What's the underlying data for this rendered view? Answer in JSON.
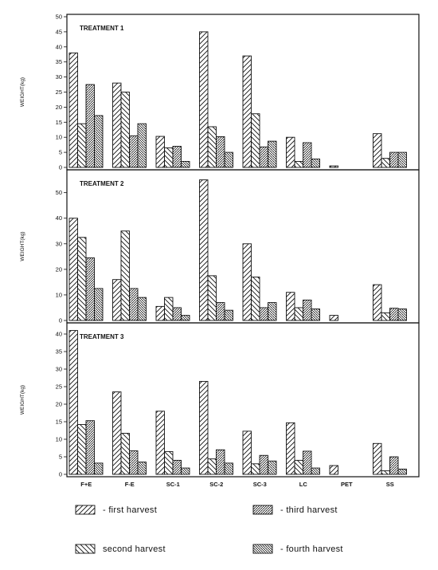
{
  "chart_data": [
    {
      "type": "bar",
      "title": "TREATMENT 1",
      "ylabel": "WEIGHT(kg)",
      "ylim": [
        0,
        50
      ],
      "yticks": [
        0,
        5,
        10,
        15,
        20,
        25,
        30,
        35,
        40,
        45,
        50
      ],
      "categories": [
        "F+E",
        "F-E",
        "SC-1",
        "SC-2",
        "SC-3",
        "LC",
        "PET",
        "SS"
      ],
      "series": [
        {
          "name": "first harvest",
          "values": [
            38,
            28,
            10.3,
            45,
            37,
            10,
            0.5,
            11.2
          ]
        },
        {
          "name": "second harvest",
          "values": [
            14.5,
            25,
            6.5,
            13.5,
            17.8,
            2,
            0,
            3
          ]
        },
        {
          "name": "third harvest",
          "values": [
            27.5,
            10.5,
            7,
            10.2,
            6.8,
            8.2,
            0,
            5
          ]
        },
        {
          "name": "fourth harvest",
          "values": [
            17.2,
            14.5,
            2,
            5,
            8.7,
            2.8,
            0,
            5
          ]
        }
      ],
      "grid": false
    },
    {
      "type": "bar",
      "title": "TREATMENT 2",
      "ylabel": "WEIGHT(kg)",
      "ylim": [
        0,
        58
      ],
      "yticks": [
        0,
        10,
        20,
        30,
        40,
        50
      ],
      "categories": [
        "F+E",
        "F-E",
        "SC-1",
        "SC-2",
        "SC-3",
        "LC",
        "PET",
        "SS"
      ],
      "series": [
        {
          "name": "first harvest",
          "values": [
            40,
            16,
            5.5,
            55,
            30,
            11,
            2,
            14
          ]
        },
        {
          "name": "second harvest",
          "values": [
            32.5,
            35,
            9,
            17.5,
            17,
            5,
            0,
            3
          ]
        },
        {
          "name": "third harvest",
          "values": [
            24.5,
            12.5,
            5,
            7,
            5,
            8,
            0,
            4.8
          ]
        },
        {
          "name": "fourth harvest",
          "values": [
            12.5,
            9,
            2,
            4,
            7,
            4.5,
            0,
            4.5
          ]
        }
      ],
      "grid": false
    },
    {
      "type": "bar",
      "title": "TREATMENT 3",
      "ylabel": "WEIGHT(kg)",
      "ylim": [
        0,
        42.5
      ],
      "yticks": [
        0,
        5,
        10,
        15,
        20,
        25,
        30,
        35,
        40
      ],
      "categories": [
        "F+E",
        "F-E",
        "SC-1",
        "SC-2",
        "SC-3",
        "LC",
        "PET",
        "SS"
      ],
      "series": [
        {
          "name": "first harvest",
          "values": [
            41,
            23.5,
            18,
            26.5,
            12.3,
            14.7,
            2.5,
            8.8
          ]
        },
        {
          "name": "second harvest",
          "values": [
            14.2,
            11.7,
            6.5,
            4.4,
            3,
            4,
            0,
            1
          ]
        },
        {
          "name": "third harvest",
          "values": [
            15.3,
            6.7,
            4,
            7,
            5.4,
            6.6,
            0,
            5
          ]
        },
        {
          "name": "fourth harvest",
          "values": [
            3.2,
            3.5,
            1.8,
            3.2,
            3.8,
            1.8,
            0,
            1.5
          ]
        }
      ],
      "grid": false
    }
  ],
  "legend": [
    {
      "prefix": "-",
      "label": "first harvest",
      "pattern": "diag-right"
    },
    {
      "prefix": "-",
      "label": "third harvest",
      "pattern": "diag-right-dense"
    },
    {
      "prefix": "",
      "label": "second harvest",
      "pattern": "diag-left"
    },
    {
      "prefix": "-",
      "label": "fourth harvest",
      "pattern": "diag-left-dense"
    }
  ]
}
